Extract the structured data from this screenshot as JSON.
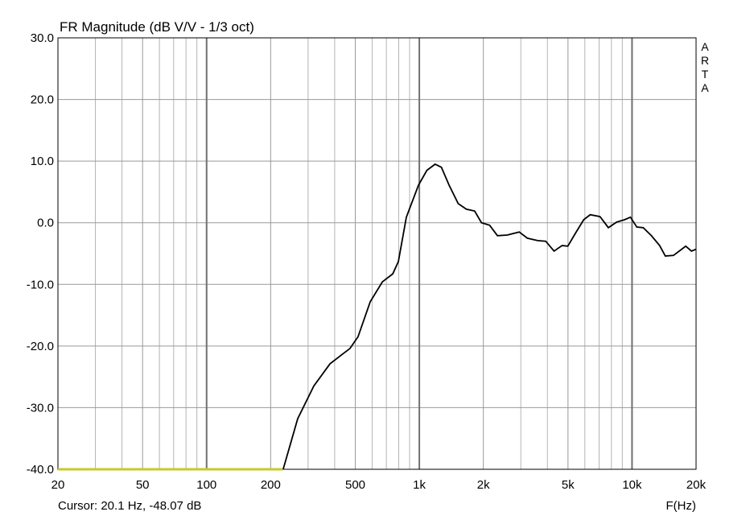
{
  "chart_data": {
    "type": "line",
    "title": "FR Magnitude (dB V/V - 1/3 oct)",
    "watermark": "ARTA",
    "x_label": "F(Hz)",
    "cursor": "Cursor: 20.1 Hz, -48.07 dB",
    "xscale": "log",
    "grid": true,
    "xlim": [
      20,
      20000
    ],
    "ylim": [
      -40,
      30
    ],
    "xticks": [
      20,
      50,
      100,
      200,
      500,
      {
        "value": 1000,
        "label": "1k"
      },
      {
        "value": 2000,
        "label": "2k"
      },
      {
        "value": 5000,
        "label": "5k"
      },
      {
        "value": 10000,
        "label": "10k"
      },
      {
        "value": 20000,
        "label": "20k"
      }
    ],
    "xgrid_minor": [
      30,
      40,
      60,
      70,
      80,
      90,
      300,
      400,
      600,
      700,
      800,
      900,
      3000,
      4000,
      6000,
      7000,
      8000,
      9000
    ],
    "yticks": [
      {
        "value": -40,
        "label": "-40.0"
      },
      {
        "value": -30,
        "label": "-30.0"
      },
      {
        "value": -20,
        "label": "-20.0"
      },
      {
        "value": -10,
        "label": "-10.0"
      },
      {
        "value": 0,
        "label": "0.0"
      },
      {
        "value": 10,
        "label": "10.0"
      },
      {
        "value": 20,
        "label": "20.0"
      },
      {
        "value": 30,
        "label": "30.0"
      }
    ],
    "series": [
      {
        "color": "#c8c832",
        "x": [
          20,
          229
        ],
        "values": [
          -40,
          -40
        ]
      },
      {
        "color": "#000000",
        "x": [
          229,
          268,
          319,
          380,
          436,
          472,
          515,
          588,
          670,
          750,
          797,
          869,
          991,
          1085,
          1186,
          1270,
          1380,
          1524,
          1664,
          1820,
          1960,
          2140,
          2330,
          2590,
          2950,
          3220,
          3600,
          3930,
          4300,
          4690,
          4990,
          5420,
          5930,
          6360,
          7070,
          7740,
          8460,
          9240,
          9830,
          10530,
          11290,
          12330,
          13480,
          14340,
          15660,
          17120,
          17880,
          19030,
          20000
        ],
        "values": [
          -40,
          -31.8,
          -26.5,
          -22.9,
          -21.3,
          -20.4,
          -18.5,
          -12.8,
          -9.6,
          -8.3,
          -6.3,
          0.9,
          6.1,
          8.5,
          9.5,
          9.0,
          6.1,
          3.1,
          2.2,
          1.9,
          0.0,
          -0.4,
          -2.1,
          -2.0,
          -1.5,
          -2.5,
          -2.9,
          -3.0,
          -4.6,
          -3.7,
          -3.8,
          -1.7,
          0.5,
          1.3,
          1.0,
          -0.8,
          0.1,
          0.5,
          0.9,
          -0.7,
          -0.8,
          -2.1,
          -3.7,
          -5.4,
          -5.3,
          -4.3,
          -3.8,
          -4.6,
          -4.3
        ]
      }
    ]
  }
}
